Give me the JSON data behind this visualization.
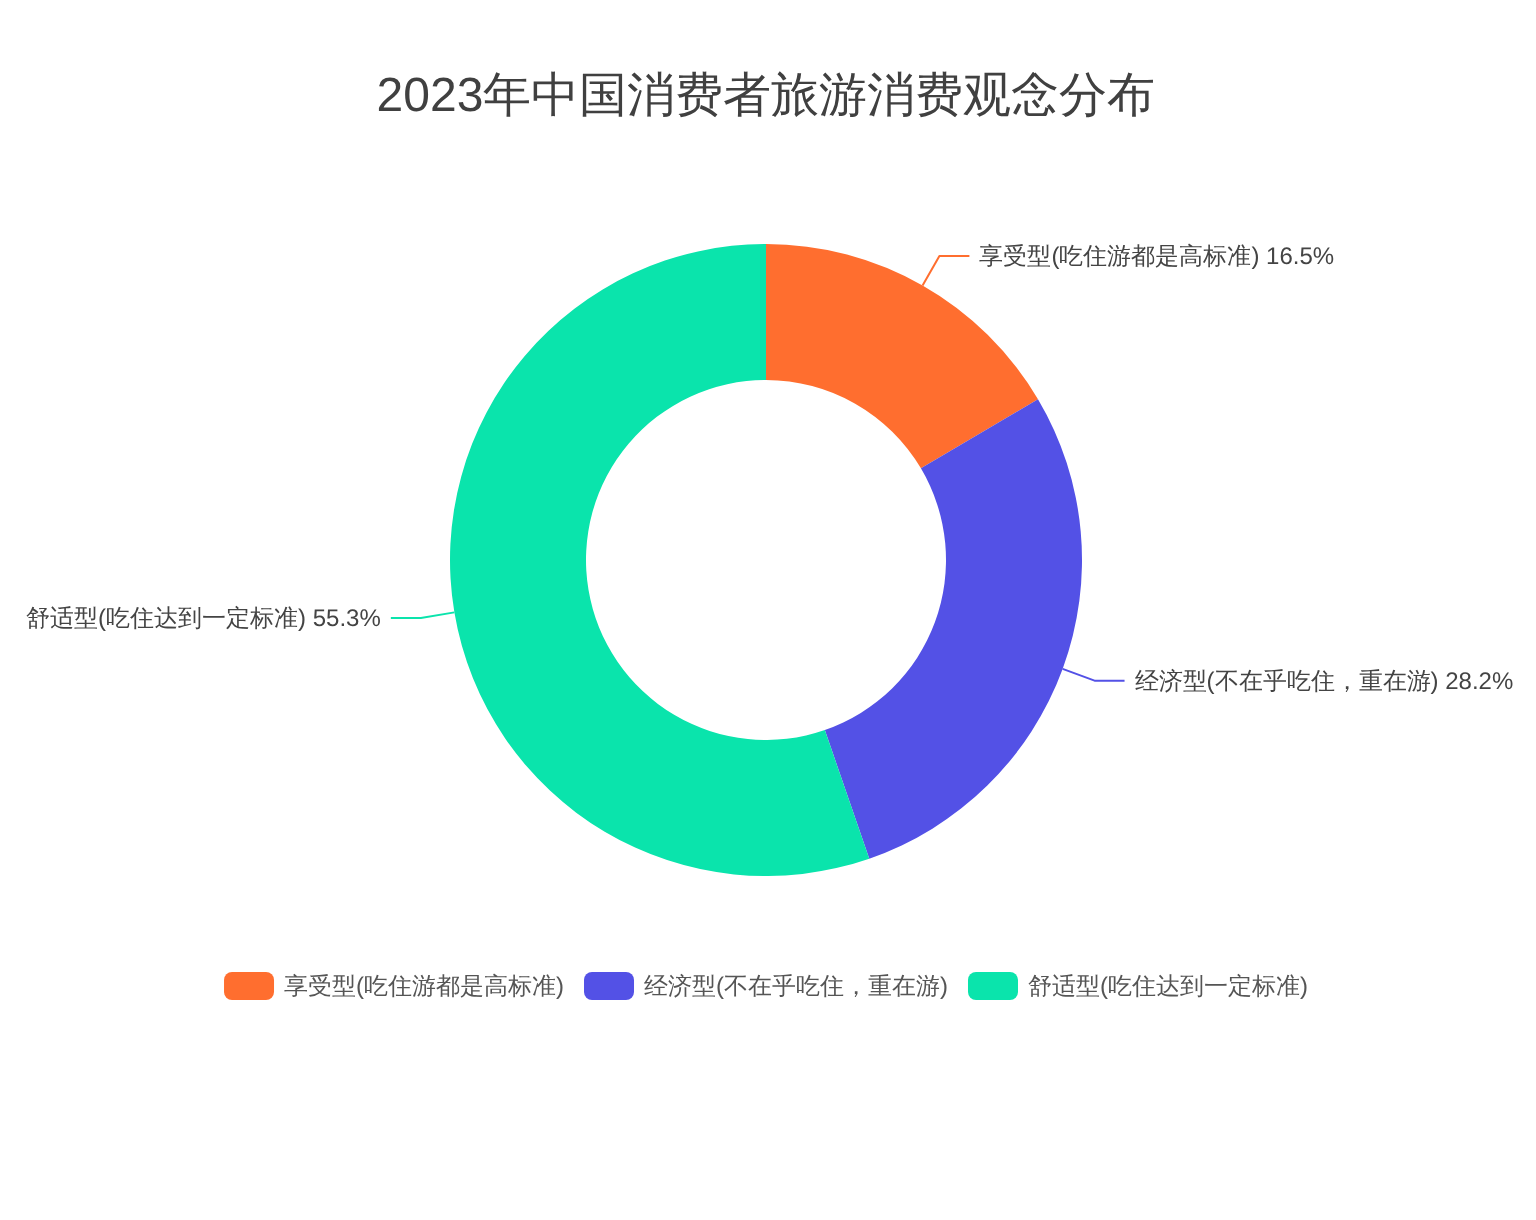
{
  "chart_data": {
    "type": "donut",
    "title": "2023年中国消费者旅游消费观念分布",
    "categories": [
      "享受型(吃住游都是高标准)",
      "经济型(不在乎吃住，重在游)",
      "舒适型(吃住达到一定标准)"
    ],
    "values": [
      16.5,
      28.2,
      55.3
    ],
    "value_labels": [
      "16.5%",
      "28.2%",
      "55.3%"
    ],
    "colors": [
      "#ff6e2f",
      "#5351e6",
      "#0ae4ac"
    ],
    "legend": "bottom"
  }
}
